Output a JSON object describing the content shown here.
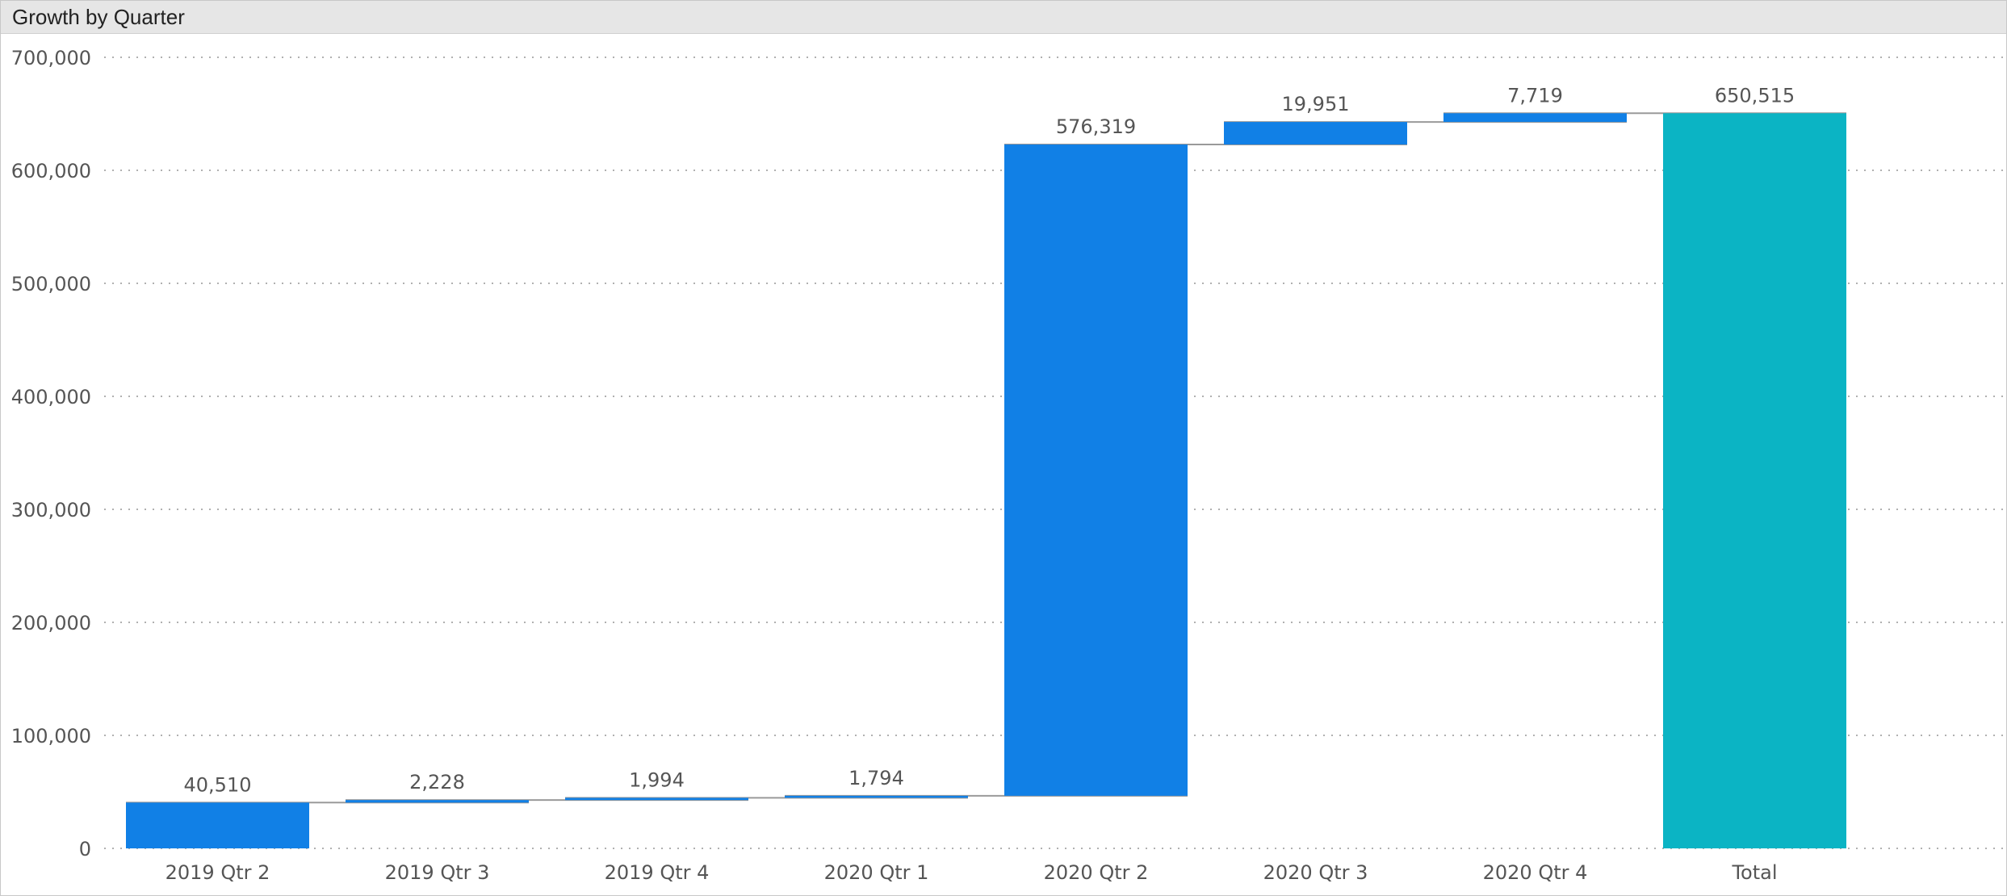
{
  "panel": {
    "title": "Growth by Quarter"
  },
  "chart_data": {
    "type": "waterfall",
    "title": "Growth by Quarter",
    "xlabel": "",
    "ylabel": "",
    "ylim": [
      0,
      700000
    ],
    "y_ticks": [
      0,
      100000,
      200000,
      300000,
      400000,
      500000,
      600000,
      700000
    ],
    "y_tick_labels": [
      "0",
      "100,000",
      "200,000",
      "300,000",
      "400,000",
      "500,000",
      "600,000",
      "700,000"
    ],
    "categories": [
      "2019 Qtr 2",
      "2019 Qtr 3",
      "2019 Qtr 4",
      "2020 Qtr 1",
      "2020 Qtr 2",
      "2020 Qtr 3",
      "2020 Qtr 4",
      "Total"
    ],
    "values": [
      40510,
      2228,
      1994,
      1794,
      576319,
      19951,
      7719,
      650515
    ],
    "value_labels": [
      "40,510",
      "2,228",
      "1,994",
      "1,794",
      "576,319",
      "19,951",
      "7,719",
      "650,515"
    ],
    "is_total": [
      false,
      false,
      false,
      false,
      false,
      false,
      false,
      true
    ],
    "grid": true,
    "grid_style": "dotted",
    "legend": "none",
    "colors": {
      "increase": "#1180e6",
      "total": "#0bb4c4",
      "connector": "#9a9a9a",
      "grid": "#b0b0b0",
      "text": "#555555"
    }
  }
}
